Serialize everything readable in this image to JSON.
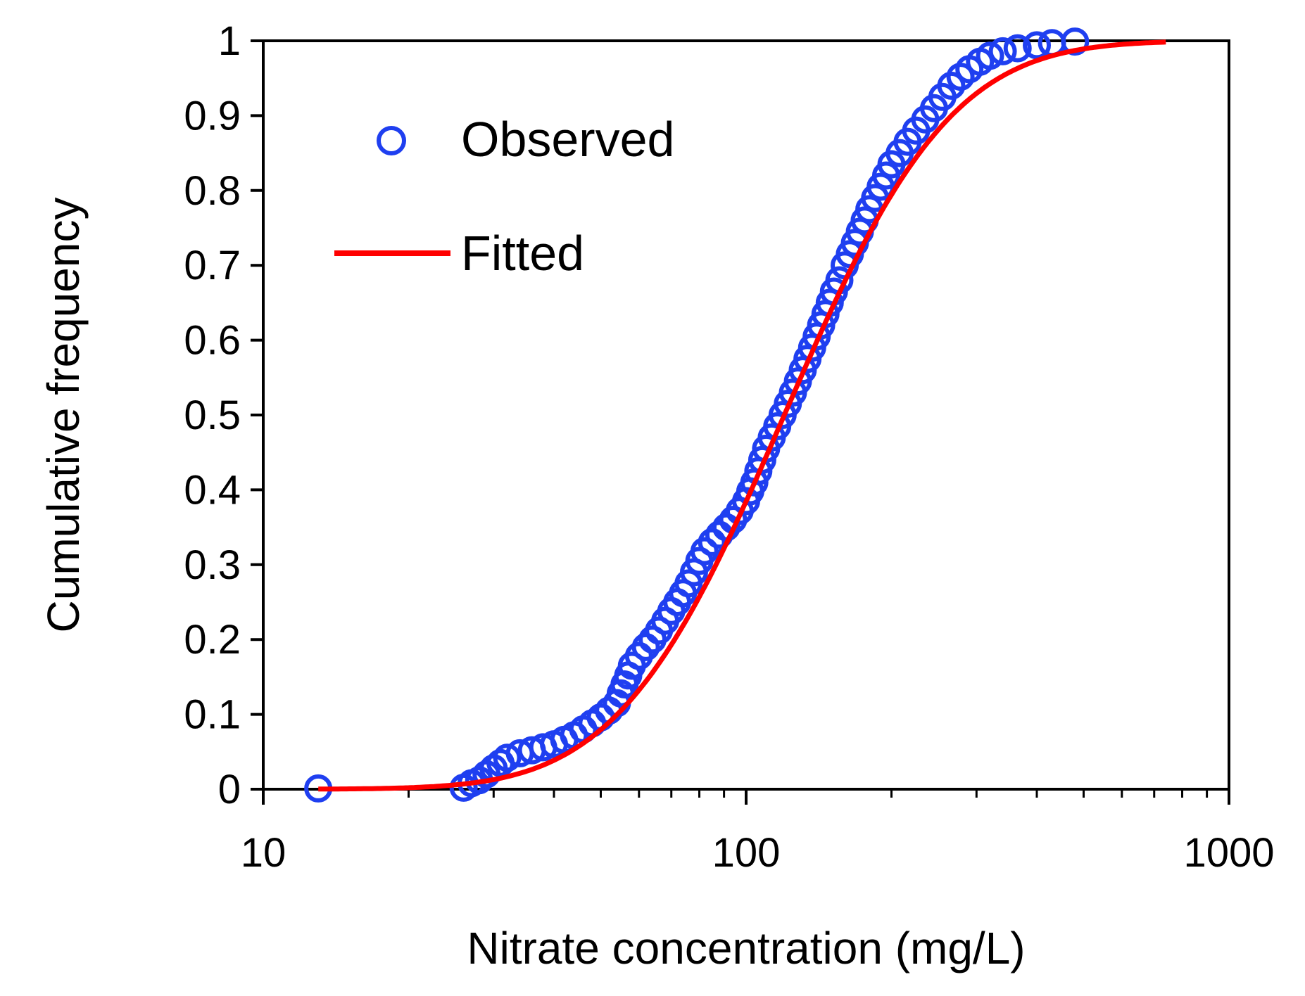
{
  "chart_data": {
    "type": "scatter",
    "xscale": "log",
    "xlim": [
      10,
      1000
    ],
    "ylim": [
      0,
      1
    ],
    "xlabel": "Nitrate concentration (mg/L)",
    "ylabel": "Cumulative frequency",
    "x_ticks": [
      10,
      100,
      1000
    ],
    "x_tick_labels": [
      "10",
      "100",
      "1000"
    ],
    "y_ticks": [
      0,
      0.1,
      0.2,
      0.3,
      0.4,
      0.5,
      0.6,
      0.7,
      0.8,
      0.9,
      1
    ],
    "y_tick_labels": [
      "0",
      "0.1",
      "0.2",
      "0.3",
      "0.4",
      "0.5",
      "0.6",
      "0.7",
      "0.8",
      "0.9",
      "1"
    ],
    "grid": false,
    "legend_position": "top-left",
    "series": [
      {
        "name": "Observed",
        "kind": "markers",
        "marker": "open-circle",
        "color": "#1f3ff0",
        "points": [
          [
            13,
            0.001
          ],
          [
            26,
            0.002
          ],
          [
            27,
            0.008
          ],
          [
            28,
            0.012
          ],
          [
            29,
            0.02
          ],
          [
            30,
            0.028
          ],
          [
            31,
            0.035
          ],
          [
            32,
            0.042
          ],
          [
            34,
            0.048
          ],
          [
            36,
            0.052
          ],
          [
            38,
            0.056
          ],
          [
            40,
            0.06
          ],
          [
            42,
            0.066
          ],
          [
            44,
            0.072
          ],
          [
            46,
            0.08
          ],
          [
            48,
            0.088
          ],
          [
            50,
            0.096
          ],
          [
            52,
            0.105
          ],
          [
            54,
            0.115
          ],
          [
            55,
            0.128
          ],
          [
            56,
            0.14
          ],
          [
            57,
            0.152
          ],
          [
            58,
            0.165
          ],
          [
            60,
            0.178
          ],
          [
            62,
            0.19
          ],
          [
            64,
            0.2
          ],
          [
            66,
            0.212
          ],
          [
            68,
            0.225
          ],
          [
            70,
            0.238
          ],
          [
            72,
            0.25
          ],
          [
            74,
            0.262
          ],
          [
            76,
            0.275
          ],
          [
            78,
            0.29
          ],
          [
            80,
            0.305
          ],
          [
            82,
            0.318
          ],
          [
            85,
            0.33
          ],
          [
            88,
            0.34
          ],
          [
            91,
            0.35
          ],
          [
            94,
            0.36
          ],
          [
            97,
            0.372
          ],
          [
            100,
            0.385
          ],
          [
            102,
            0.398
          ],
          [
            104,
            0.41
          ],
          [
            106,
            0.425
          ],
          [
            108,
            0.44
          ],
          [
            110,
            0.455
          ],
          [
            113,
            0.47
          ],
          [
            116,
            0.485
          ],
          [
            119,
            0.5
          ],
          [
            122,
            0.515
          ],
          [
            125,
            0.53
          ],
          [
            128,
            0.545
          ],
          [
            131,
            0.56
          ],
          [
            134,
            0.575
          ],
          [
            137,
            0.59
          ],
          [
            140,
            0.605
          ],
          [
            143,
            0.62
          ],
          [
            146,
            0.635
          ],
          [
            149,
            0.65
          ],
          [
            152,
            0.665
          ],
          [
            156,
            0.68
          ],
          [
            160,
            0.7
          ],
          [
            164,
            0.715
          ],
          [
            168,
            0.73
          ],
          [
            172,
            0.745
          ],
          [
            176,
            0.76
          ],
          [
            180,
            0.775
          ],
          [
            185,
            0.79
          ],
          [
            190,
            0.805
          ],
          [
            195,
            0.82
          ],
          [
            200,
            0.835
          ],
          [
            208,
            0.85
          ],
          [
            216,
            0.865
          ],
          [
            225,
            0.88
          ],
          [
            235,
            0.895
          ],
          [
            245,
            0.91
          ],
          [
            255,
            0.925
          ],
          [
            266,
            0.94
          ],
          [
            278,
            0.952
          ],
          [
            290,
            0.962
          ],
          [
            305,
            0.972
          ],
          [
            320,
            0.98
          ],
          [
            340,
            0.986
          ],
          [
            365,
            0.99
          ],
          [
            400,
            0.994
          ],
          [
            430,
            0.997
          ],
          [
            480,
            0.999
          ]
        ]
      },
      {
        "name": "Fitted",
        "kind": "line",
        "color": "#ff0000",
        "distribution": "lognormal",
        "median": 120,
        "log10_sigma": 0.27,
        "x_range": [
          13,
          740
        ]
      }
    ]
  }
}
